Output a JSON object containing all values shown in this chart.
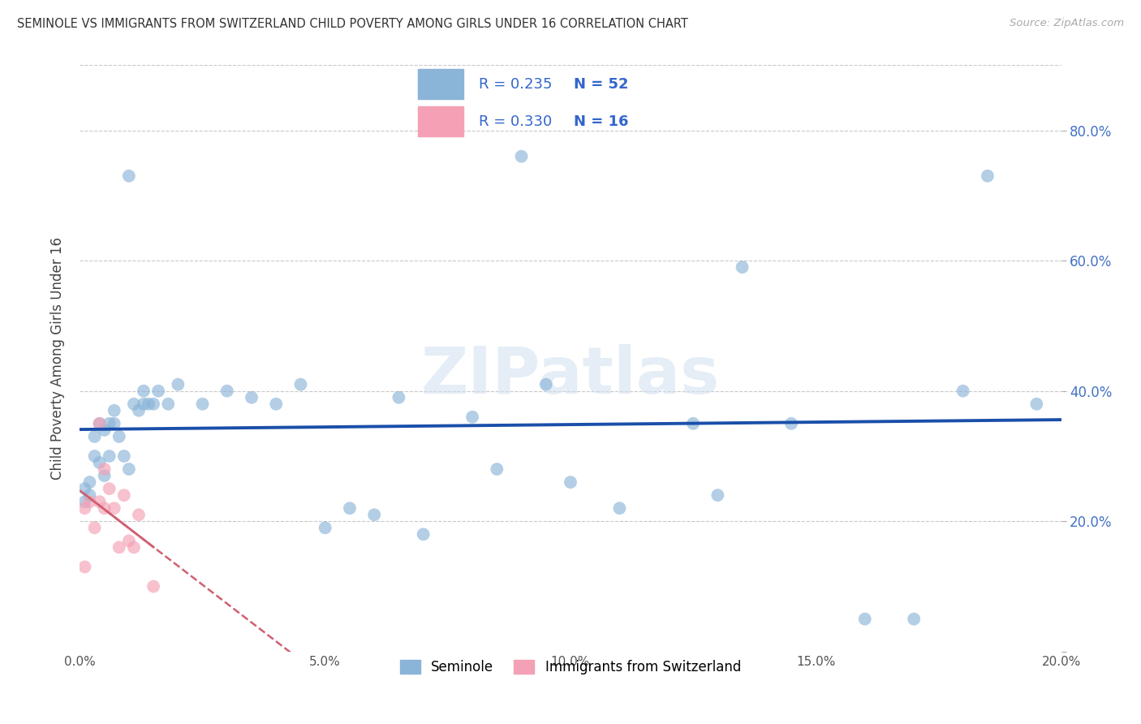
{
  "title": "SEMINOLE VS IMMIGRANTS FROM SWITZERLAND CHILD POVERTY AMONG GIRLS UNDER 16 CORRELATION CHART",
  "source": "Source: ZipAtlas.com",
  "ylabel": "Child Poverty Among Girls Under 16",
  "xlim": [
    0.0,
    0.2
  ],
  "ylim": [
    0.0,
    0.9
  ],
  "xticks": [
    0.0,
    0.05,
    0.1,
    0.15,
    0.2
  ],
  "yticks": [
    0.0,
    0.2,
    0.4,
    0.6,
    0.8
  ],
  "xtick_labels": [
    "0.0%",
    "5.0%",
    "10.0%",
    "15.0%",
    "20.0%"
  ],
  "ytick_labels": [
    "",
    "20.0%",
    "40.0%",
    "60.0%",
    "80.0%"
  ],
  "legend_label1": "Seminole",
  "legend_label2": "Immigrants from Switzerland",
  "r1": "0.235",
  "n1": "52",
  "r2": "0.330",
  "n2": "16",
  "seminole_color": "#8ab4d8",
  "swiss_color": "#f4a0b5",
  "trend1_color": "#1a4faa",
  "trend2_color": "#d06070",
  "watermark": "ZIPatlas",
  "background_color": "#ffffff",
  "grid_color": "#c8c8c8",
  "seminole_x": [
    0.001,
    0.001,
    0.002,
    0.002,
    0.003,
    0.003,
    0.004,
    0.004,
    0.005,
    0.005,
    0.006,
    0.006,
    0.007,
    0.007,
    0.008,
    0.009,
    0.01,
    0.01,
    0.011,
    0.012,
    0.013,
    0.013,
    0.014,
    0.015,
    0.016,
    0.018,
    0.02,
    0.025,
    0.03,
    0.035,
    0.04,
    0.045,
    0.05,
    0.055,
    0.06,
    0.065,
    0.07,
    0.08,
    0.085,
    0.09,
    0.095,
    0.1,
    0.11,
    0.125,
    0.13,
    0.135,
    0.145,
    0.16,
    0.17,
    0.18,
    0.185,
    0.195
  ],
  "seminole_y": [
    0.25,
    0.23,
    0.26,
    0.24,
    0.33,
    0.3,
    0.35,
    0.29,
    0.34,
    0.27,
    0.35,
    0.3,
    0.37,
    0.35,
    0.33,
    0.3,
    0.28,
    0.73,
    0.38,
    0.37,
    0.38,
    0.4,
    0.38,
    0.38,
    0.4,
    0.38,
    0.41,
    0.38,
    0.4,
    0.39,
    0.38,
    0.41,
    0.19,
    0.22,
    0.21,
    0.39,
    0.18,
    0.36,
    0.28,
    0.76,
    0.41,
    0.26,
    0.22,
    0.35,
    0.24,
    0.59,
    0.35,
    0.05,
    0.05,
    0.4,
    0.73,
    0.38
  ],
  "swiss_x": [
    0.001,
    0.001,
    0.002,
    0.003,
    0.004,
    0.004,
    0.005,
    0.005,
    0.006,
    0.007,
    0.008,
    0.009,
    0.01,
    0.011,
    0.012,
    0.015
  ],
  "swiss_y": [
    0.22,
    0.13,
    0.23,
    0.19,
    0.23,
    0.35,
    0.28,
    0.22,
    0.25,
    0.22,
    0.16,
    0.24,
    0.17,
    0.16,
    0.21,
    0.1
  ]
}
